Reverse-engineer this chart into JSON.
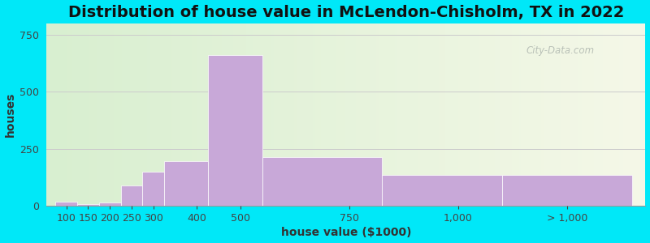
{
  "title": "Distribution of house value in McLendon-Chisholm, TX in 2022",
  "xlabel": "house value ($1000)",
  "ylabel": "houses",
  "bar_labels": [
    "100",
    "150",
    "200",
    "250",
    "300",
    "400",
    "500",
    "750",
    "1,000",
    "> 1,000"
  ],
  "bar_values": [
    20,
    8,
    15,
    90,
    150,
    195,
    660,
    215,
    135,
    135
  ],
  "bar_color": "#c8a8d8",
  "bar_edgecolor": "#ffffff",
  "ylim": [
    0,
    800
  ],
  "yticks": [
    0,
    250,
    500,
    750
  ],
  "background_outer": "#00e8f8",
  "title_fontsize": 14,
  "axis_label_fontsize": 10,
  "tick_fontsize": 9,
  "watermark_text": "City-Data.com",
  "bar_left_edges": [
    75,
    125,
    175,
    225,
    275,
    325,
    425,
    550,
    825,
    1100
  ],
  "bar_right_edges": [
    125,
    175,
    225,
    275,
    325,
    425,
    550,
    825,
    1100,
    1400
  ],
  "xtick_positions": [
    100,
    150,
    200,
    250,
    300,
    400,
    500,
    750,
    1000,
    1250
  ],
  "xlim": [
    55,
    1430
  ]
}
